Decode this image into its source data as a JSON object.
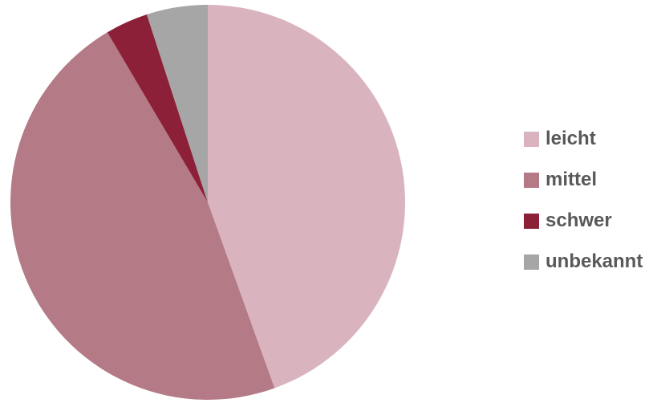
{
  "chart_data": {
    "type": "pie",
    "title": "",
    "start_angle_deg": 0,
    "direction": "clockwise",
    "slices": [
      {
        "label": "leicht",
        "value": 44.5,
        "color": "#d9b4bf"
      },
      {
        "label": "mittel",
        "value": 47.0,
        "color": "#b47a86"
      },
      {
        "label": "schwer",
        "value": 3.5,
        "color": "#8c2038"
      },
      {
        "label": "unbekannt",
        "value": 5.0,
        "color": "#a6a6a6"
      }
    ],
    "legend_position": "right"
  }
}
